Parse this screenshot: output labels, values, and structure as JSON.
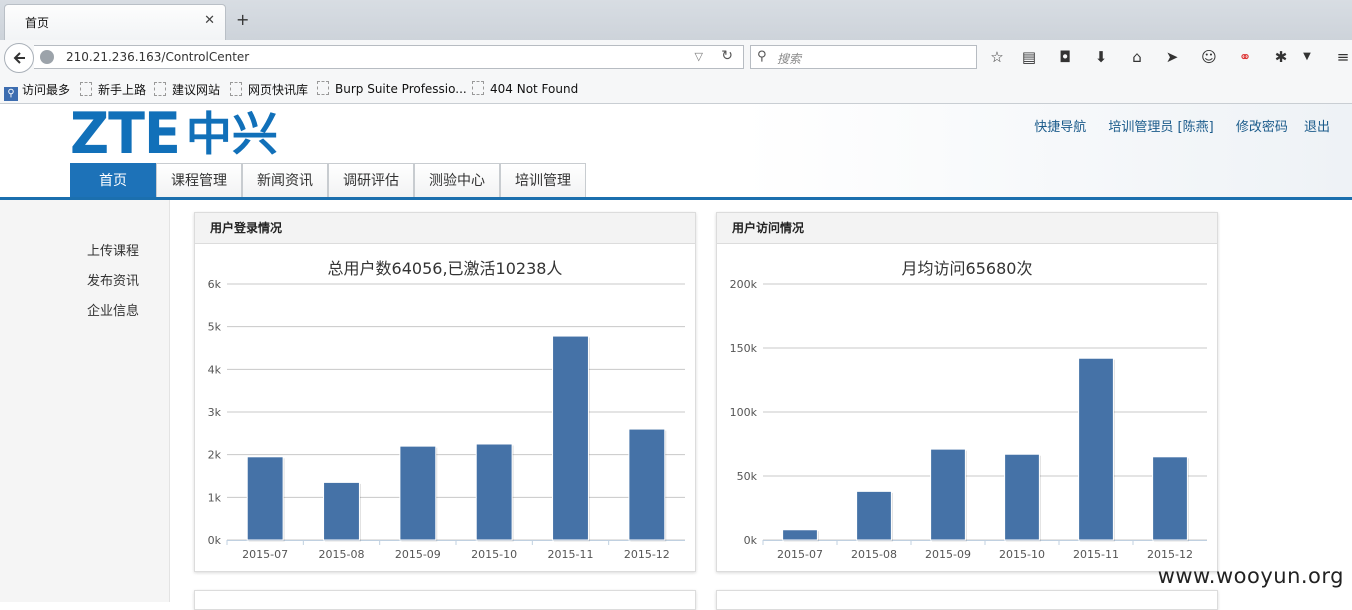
{
  "browser": {
    "tab_title": "首页",
    "tab_close": "✕",
    "new_tab": "+",
    "url": "210.21.236.163/ControlCenter",
    "search_placeholder": "搜索",
    "bookmarks": [
      "访问最多",
      "新手上路",
      "建议网站",
      "网页快讯库",
      "Burp Suite Professio...",
      "404 Not Found"
    ]
  },
  "header": {
    "logo_latin": "ZTE",
    "logo_cn": "中兴",
    "links": [
      "快捷导航",
      "培训管理员 [陈燕]",
      "修改密码",
      "退出"
    ],
    "nav": [
      "首页",
      "课程管理",
      "新闻资讯",
      "调研评估",
      "测验中心",
      "培训管理"
    ],
    "active_nav": "首页"
  },
  "sidebar": {
    "items": [
      "上传课程",
      "发布资讯",
      "企业信息"
    ]
  },
  "panels": [
    {
      "heading": "用户登录情况"
    },
    {
      "heading": "用户访问情况"
    }
  ],
  "chart_data": [
    {
      "type": "bar",
      "title": "总用户数64056,已激活10238人",
      "categories": [
        "2015-07",
        "2015-08",
        "2015-09",
        "2015-10",
        "2015-11",
        "2015-12"
      ],
      "values": [
        1950,
        1350,
        2200,
        2250,
        4780,
        2600
      ],
      "ylim": [
        0,
        6000
      ],
      "yticks": [
        "0k",
        "1k",
        "2k",
        "3k",
        "4k",
        "5k",
        "6k"
      ],
      "ytick_values": [
        0,
        1000,
        2000,
        3000,
        4000,
        5000,
        6000
      ],
      "xlabel": "",
      "ylabel": "",
      "grid": true,
      "color": "#4572a7"
    },
    {
      "type": "bar",
      "title": "月均访问65680次",
      "categories": [
        "2015-07",
        "2015-08",
        "2015-09",
        "2015-10",
        "2015-11",
        "2015-12"
      ],
      "values": [
        8000,
        38000,
        71000,
        67000,
        142000,
        65000
      ],
      "ylim": [
        0,
        200000
      ],
      "yticks": [
        "0k",
        "50k",
        "100k",
        "150k",
        "200k"
      ],
      "ytick_values": [
        0,
        50000,
        100000,
        150000,
        200000
      ],
      "xlabel": "",
      "ylabel": "",
      "grid": true,
      "color": "#4572a7"
    }
  ],
  "watermark": "www.wooyun.org"
}
